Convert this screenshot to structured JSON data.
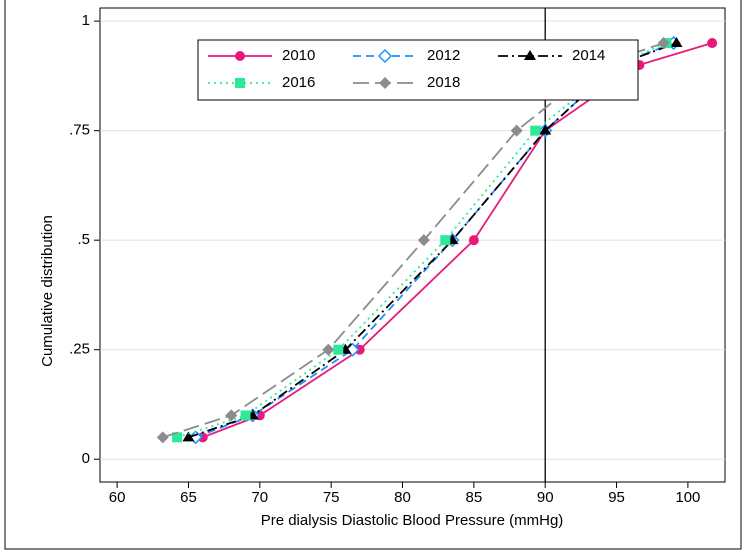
{
  "chart_data": {
    "type": "line",
    "x_label": "Pre dialysis Diastolic Blood Pressure (mmHg)",
    "y_label": "Cumulative distribution",
    "xlim": [
      58.8,
      102.6
    ],
    "ylim": [
      -0.052,
      1.03
    ],
    "xticks": [
      60,
      65,
      70,
      75,
      80,
      85,
      90,
      95,
      100
    ],
    "yticks": [
      0,
      {
        "value": 0.25,
        "label": ".25"
      },
      {
        "value": 0.5,
        "label": ".5"
      },
      {
        "value": 0.75,
        "label": ".75"
      },
      1
    ],
    "grid": true,
    "xline": 90,
    "legend": "top",
    "series": [
      {
        "name": "2010",
        "color": "#e8197a",
        "dash": "solid",
        "marker": "circle",
        "x": [
          66,
          70,
          77,
          85,
          90,
          96.6,
          101.7
        ],
        "values": [
          0.05,
          0.1,
          0.25,
          0.5,
          0.75,
          0.9,
          0.95
        ]
      },
      {
        "name": "2012",
        "color": "#1e8fff",
        "dash": "dash",
        "marker": "hollow-diamond",
        "x": [
          65.5,
          69.5,
          76.5,
          83.5,
          90,
          95,
          99
        ],
        "values": [
          0.05,
          0.1,
          0.25,
          0.5,
          0.75,
          0.9,
          0.95
        ]
      },
      {
        "name": "2014",
        "color": "#000000",
        "dash": "dashdot",
        "marker": "triangle",
        "x": [
          65,
          69.5,
          76,
          83.5,
          90,
          95,
          99.2
        ],
        "values": [
          0.05,
          0.1,
          0.25,
          0.5,
          0.75,
          0.9,
          0.95
        ]
      },
      {
        "name": "2016",
        "color": "#2ee89c",
        "dash": "dot",
        "marker": "square",
        "x": [
          64.2,
          69,
          75.5,
          83,
          89.3,
          95,
          98.5
        ],
        "values": [
          0.05,
          0.1,
          0.25,
          0.5,
          0.75,
          0.9,
          0.95
        ]
      },
      {
        "name": "2018",
        "color": "#8c8c8c",
        "dash": "longdash",
        "marker": "diamond",
        "x": [
          63.2,
          68,
          74.8,
          81.5,
          88,
          93.8,
          98.3
        ],
        "values": [
          0.05,
          0.1,
          0.25,
          0.5,
          0.75,
          0.9,
          0.95
        ]
      }
    ]
  }
}
